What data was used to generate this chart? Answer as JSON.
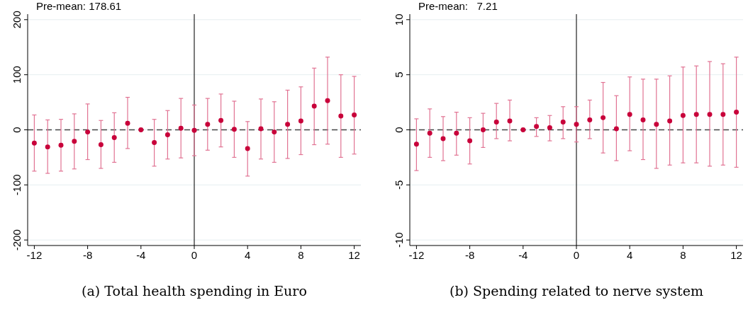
{
  "chart_data": [
    {
      "type": "scatter",
      "title": "(a) Total health spending in Euro",
      "annotations": [
        "Pre-mean: 178.61"
      ],
      "x": [
        -12,
        -11,
        -10,
        -9,
        -8,
        -7,
        -6,
        -5,
        -4,
        -3,
        -2,
        -1,
        0,
        1,
        2,
        3,
        4,
        5,
        6,
        7,
        8,
        9,
        10,
        11,
        12
      ],
      "series": [
        {
          "color": "#c8003a",
          "values": [
            -24,
            -31,
            -28,
            -21,
            -4,
            -27,
            -14,
            12,
            0,
            -23,
            -9,
            3,
            -1,
            10,
            17,
            1,
            -34,
            2,
            -4,
            10,
            16,
            43,
            53,
            25,
            27
          ],
          "errors": [
            [
              -75,
              27
            ],
            [
              -79,
              18
            ],
            [
              -75,
              19
            ],
            [
              -71,
              29
            ],
            [
              -54,
              47
            ],
            [
              -70,
              17
            ],
            [
              -59,
              31
            ],
            [
              -34,
              59
            ],
            null,
            [
              -66,
              19
            ],
            [
              -53,
              35
            ],
            [
              -51,
              57
            ],
            [
              -47,
              45
            ],
            [
              -37,
              57
            ],
            [
              -31,
              65
            ],
            [
              -50,
              52
            ],
            [
              -84,
              15
            ],
            [
              -53,
              56
            ],
            [
              -59,
              51
            ],
            [
              -52,
              72
            ],
            [
              -45,
              78
            ],
            [
              -27,
              112
            ],
            [
              -26,
              132
            ],
            [
              -50,
              100
            ],
            [
              -44,
              97
            ]
          ]
        }
      ],
      "xlim": [
        -12.5,
        12.5
      ],
      "xticks": [
        -12,
        -8,
        -4,
        0,
        4,
        8,
        12
      ],
      "ylim": [
        -210,
        210
      ],
      "yticks": [
        -200,
        -100,
        0,
        100,
        200
      ],
      "grid": "y",
      "marker": "circle",
      "ref_lines": [
        {
          "axis": "y",
          "value": 0,
          "line_style": "dashed",
          "color": "#444444"
        },
        {
          "axis": "x",
          "value": 0,
          "line_style": "solid",
          "color": "#222222"
        }
      ]
    },
    {
      "type": "scatter",
      "title": "(b) Spending related to nerve system",
      "annotations": [
        "Pre-mean:   7.21"
      ],
      "x": [
        -12,
        -11,
        -10,
        -9,
        -8,
        -7,
        -6,
        -5,
        -4,
        -3,
        -2,
        -1,
        0,
        1,
        2,
        3,
        4,
        5,
        6,
        7,
        8,
        9,
        10,
        11,
        12
      ],
      "series": [
        {
          "color": "#c8003a",
          "values": [
            -1.3,
            -0.3,
            -0.8,
            -0.3,
            -1.0,
            0.0,
            0.7,
            0.8,
            0,
            0.3,
            0.2,
            0.7,
            0.5,
            0.9,
            1.1,
            0.1,
            1.4,
            0.9,
            0.5,
            0.8,
            1.3,
            1.4,
            1.4,
            1.4,
            1.6
          ],
          "errors": [
            [
              -3.7,
              1.0
            ],
            [
              -2.5,
              1.9
            ],
            [
              -2.8,
              1.2
            ],
            [
              -2.3,
              1.6
            ],
            [
              -3.1,
              1.1
            ],
            [
              -1.6,
              1.5
            ],
            [
              -0.8,
              2.4
            ],
            [
              -1.0,
              2.7
            ],
            null,
            [
              -0.6,
              1.1
            ],
            [
              -1.0,
              1.3
            ],
            [
              -0.8,
              2.1
            ],
            [
              -1.1,
              2.1
            ],
            [
              -0.8,
              2.7
            ],
            [
              -2.1,
              4.3
            ],
            [
              -2.8,
              3.1
            ],
            [
              -1.9,
              4.8
            ],
            [
              -2.7,
              4.6
            ],
            [
              -3.5,
              4.6
            ],
            [
              -3.2,
              4.9
            ],
            [
              -3.0,
              5.7
            ],
            [
              -3.0,
              5.8
            ],
            [
              -3.3,
              6.2
            ],
            [
              -3.2,
              6.0
            ],
            [
              -3.4,
              6.6
            ]
          ]
        }
      ],
      "xlim": [
        -12.5,
        12.5
      ],
      "xticks": [
        -12,
        -8,
        -4,
        0,
        4,
        8,
        12
      ],
      "ylim": [
        -10.5,
        10.5
      ],
      "yticks": [
        -10,
        -5,
        0,
        5,
        10
      ],
      "grid": "y",
      "marker": "circle",
      "ref_lines": [
        {
          "axis": "y",
          "value": 0,
          "line_style": "dashed",
          "color": "#444444"
        },
        {
          "axis": "x",
          "value": 0,
          "line_style": "solid",
          "color": "#222222"
        }
      ]
    }
  ]
}
